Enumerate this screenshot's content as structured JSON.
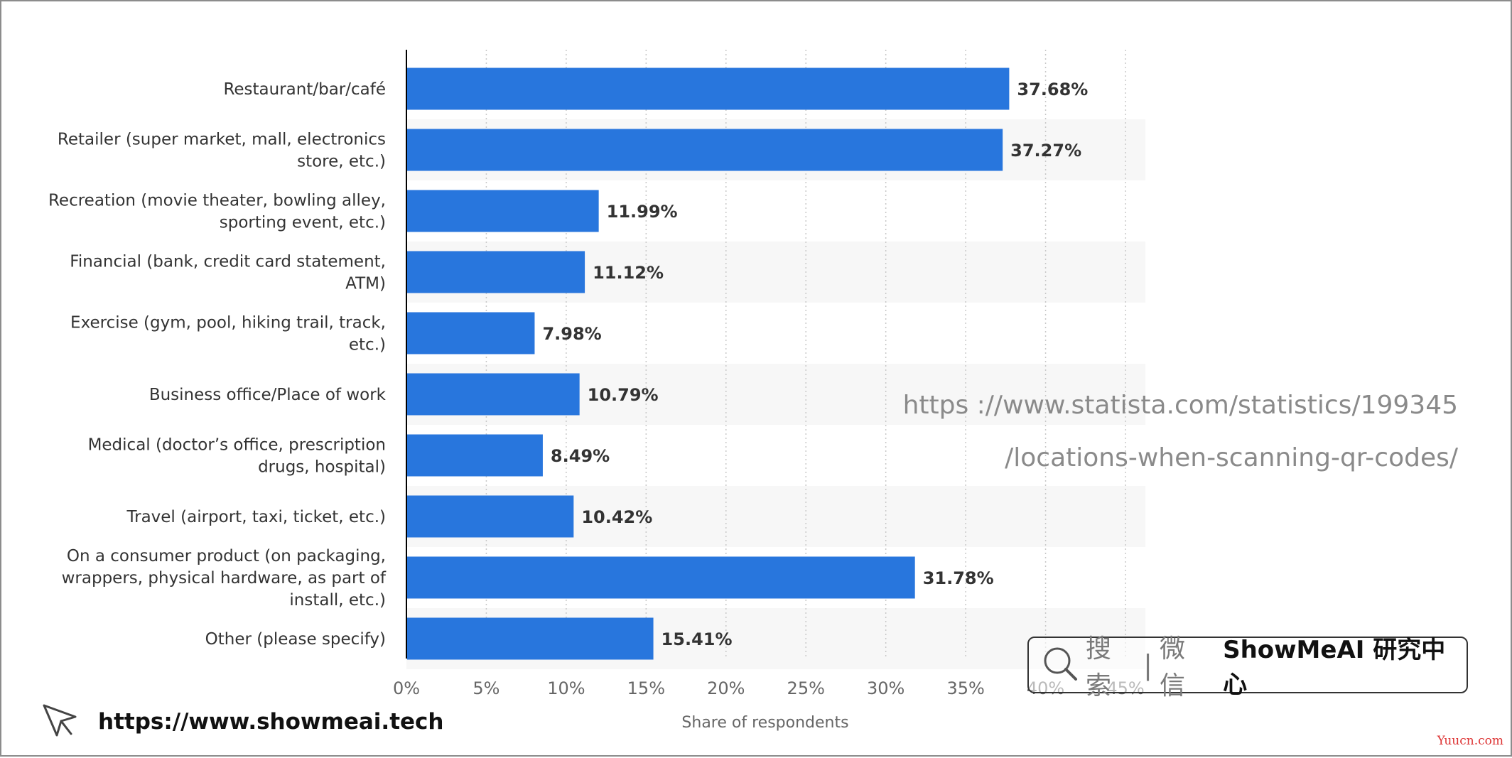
{
  "chart_data": {
    "type": "bar",
    "orientation": "horizontal",
    "categories": [
      [
        "Restaurant/bar/café"
      ],
      [
        "Retailer (super market, mall, electronics",
        "store, etc.)"
      ],
      [
        "Recreation (movie theater, bowling alley,",
        "sporting event, etc.)"
      ],
      [
        "Financial (bank, credit card statement,",
        "ATM)"
      ],
      [
        "Exercise (gym, pool, hiking trail, track,",
        "etc.)"
      ],
      [
        "Business office/Place of work"
      ],
      [
        "Medical (doctor’s office, prescription",
        "drugs, hospital)"
      ],
      [
        "Travel (airport, taxi, ticket, etc.)"
      ],
      [
        "On a consumer product (on packaging,",
        "wrappers, physical hardware, as part of",
        "install, etc.)"
      ],
      [
        "Other (please specify)"
      ]
    ],
    "values": [
      37.68,
      37.27,
      11.99,
      11.12,
      7.98,
      10.79,
      8.49,
      10.42,
      31.78,
      15.41
    ],
    "data_labels": [
      "37.68%",
      "37.27%",
      "11.99%",
      "11.12%",
      "7.98%",
      "10.79%",
      "8.49%",
      "10.42%",
      "31.78%",
      "15.41%"
    ],
    "xlim": [
      0,
      45
    ],
    "xticks": [
      0,
      5,
      10,
      15,
      20,
      25,
      30,
      35,
      40,
      45
    ],
    "xtick_labels": [
      "0%",
      "5%",
      "10%",
      "15%",
      "20%",
      "25%",
      "30%",
      "35%",
      "40%",
      "45%"
    ],
    "xlabel": "Share of respondents",
    "ylabel": "",
    "grid": "vertical dotted",
    "bar_color": "#2876dd",
    "alt_row_color": "#f7f7f7"
  },
  "watermark": {
    "line1": "https ://www.statista.com/statistics/199345",
    "line2": "/locations-when-scanning-qr-codes/"
  },
  "search_bar": {
    "hint": "搜索",
    "separator": "|",
    "channel": "微信",
    "brand": "ShowMeAI 研究中心",
    "icon": "search-icon"
  },
  "footer": {
    "url": "https://www.showmeai.tech",
    "icon": "cursor-arrow-icon"
  },
  "corner_mark": "Yuucn.com"
}
